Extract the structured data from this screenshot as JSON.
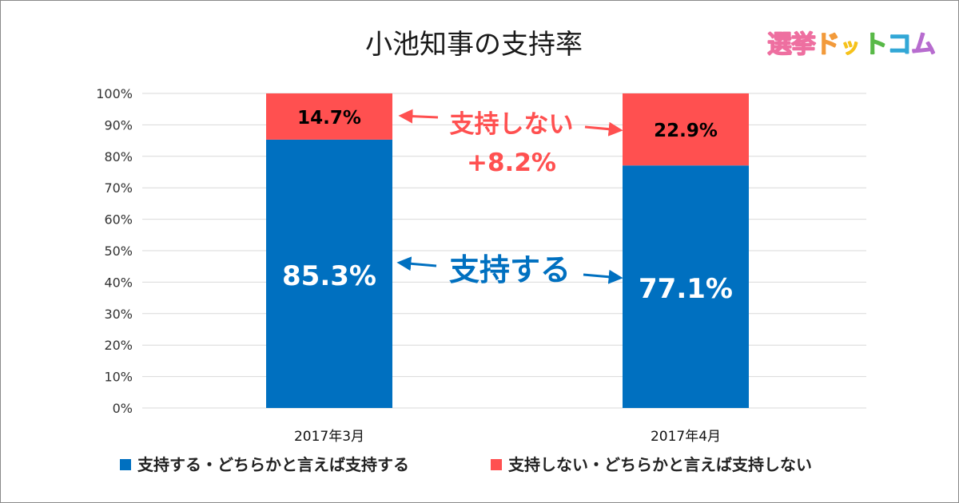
{
  "logo": {
    "text": "選挙ドットコム",
    "chars": [
      "選",
      "挙",
      "ド",
      "ッ",
      "ト",
      "コ",
      "ム"
    ],
    "colors": [
      "#ee6fa0",
      "#ee6fa0",
      "#f29a3b",
      "#f6c21b",
      "#58b947",
      "#32a7d6",
      "#b76ccf"
    ]
  },
  "annotations": {
    "not_support_label": "支持しない",
    "not_support_change": "+8.2%",
    "support_label": "支持する"
  },
  "colors": {
    "support": "#0070c0",
    "not_support": "#ff5050",
    "grid": "#d9d9d9"
  },
  "chart_data": {
    "type": "bar",
    "stacked": true,
    "title": "小池知事の支持率",
    "categories": [
      "2017年3月",
      "2017年4月"
    ],
    "series": [
      {
        "name": "支持する・どちらかと言えば支持する",
        "values": [
          85.3,
          77.1
        ],
        "labels": [
          "85.3%",
          "77.1%"
        ],
        "color": "#0070c0"
      },
      {
        "name": "支持しない・どちらかと言えば支持しない",
        "values": [
          14.7,
          22.9
        ],
        "labels": [
          "14.7%",
          "22.9%"
        ],
        "color": "#ff5050"
      }
    ],
    "ylim": [
      0,
      100
    ],
    "yticks": [
      "0%",
      "10%",
      "20%",
      "30%",
      "40%",
      "50%",
      "60%",
      "70%",
      "80%",
      "90%",
      "100%"
    ],
    "grid": true,
    "legend": "bottom"
  }
}
